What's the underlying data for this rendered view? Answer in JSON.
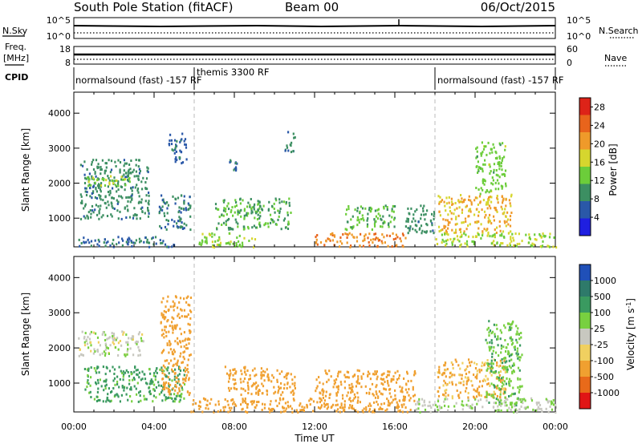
{
  "header": {
    "station": "South Pole Station (fitACF)",
    "beam": "Beam 00",
    "date": "06/Oct/2015"
  },
  "strips": {
    "nsky_label": "N.Sky",
    "nsearch_label": "N.Search",
    "freq_label": "Freq.",
    "freq_unit": "[MHz]",
    "nave_label": "Nave",
    "cpid_label": "CPID",
    "sky_ticks": [
      "10^5",
      "10^0"
    ],
    "search_ticks": [
      "10^5",
      "10^0"
    ],
    "freq_ticks": [
      "18",
      "8"
    ],
    "nave_ticks": [
      "60",
      "0"
    ],
    "freq_value_mhz": 12,
    "nave_value": 30,
    "cpid_segments": [
      {
        "label": "normalsound (fast) -157 RF",
        "start_h": 0,
        "end_h": 6
      },
      {
        "label": "themis 3300 RF",
        "start_h": 6,
        "end_h": 18
      },
      {
        "label": "normalsound (fast) -157 RF",
        "start_h": 18,
        "end_h": 24
      }
    ]
  },
  "xaxis": {
    "label": "Time UT",
    "ticks": [
      "00:00",
      "04:00",
      "08:00",
      "12:00",
      "16:00",
      "20:00",
      "00:00"
    ]
  },
  "colors": {
    "power": [
      "#1f1fe0",
      "#2a58a8",
      "#3c8f62",
      "#6ccd3a",
      "#d6d62e",
      "#ef9a2a",
      "#e8641c",
      "#dd2318"
    ],
    "velocity": [
      "#e01515",
      "#e86a1a",
      "#f0a030",
      "#f0d060",
      "#c8c8c0",
      "#78d040",
      "#3a9a60",
      "#2e7a6a",
      "#2050b8"
    ]
  },
  "chart_data": [
    {
      "type": "heatmap",
      "title": "",
      "xlabel": "Time UT",
      "ylabel": "Slant Range [km]",
      "xlim": [
        0,
        24
      ],
      "ylim": [
        180,
        4600
      ],
      "x_ticks": [
        "00:00",
        "04:00",
        "08:00",
        "12:00",
        "16:00",
        "20:00",
        "00:00"
      ],
      "y_ticks": [
        1000,
        2000,
        3000,
        4000
      ],
      "colorbar": {
        "label": "Power [dB]",
        "ticks": [
          4,
          8,
          12,
          16,
          20,
          24,
          28
        ],
        "range": [
          0,
          30
        ]
      },
      "patches": [
        {
          "t0": 0.3,
          "t1": 3.7,
          "r0": 1000,
          "r1": 2700,
          "value": 9
        },
        {
          "t0": 0.6,
          "t1": 2.8,
          "r0": 1950,
          "r1": 2250,
          "value": 14
        },
        {
          "t0": 0.2,
          "t1": 5.0,
          "r0": 200,
          "r1": 500,
          "value": 7
        },
        {
          "t0": 4.2,
          "t1": 5.8,
          "r0": 700,
          "r1": 1700,
          "value": 8
        },
        {
          "t0": 4.7,
          "t1": 5.6,
          "r0": 2600,
          "r1": 3500,
          "value": 6
        },
        {
          "t0": 6.2,
          "t1": 9.0,
          "r0": 200,
          "r1": 600,
          "value": 14
        },
        {
          "t0": 7.0,
          "t1": 10.8,
          "r0": 700,
          "r1": 1600,
          "value": 11
        },
        {
          "t0": 7.6,
          "t1": 8.1,
          "r0": 2350,
          "r1": 2700,
          "value": 7
        },
        {
          "t0": 10.5,
          "t1": 11.0,
          "r0": 2900,
          "r1": 3500,
          "value": 9
        },
        {
          "t0": 12.0,
          "t1": 16.5,
          "r0": 200,
          "r1": 600,
          "value": 22
        },
        {
          "t0": 13.5,
          "t1": 16.0,
          "r0": 700,
          "r1": 1400,
          "value": 12
        },
        {
          "t0": 16.5,
          "t1": 18.0,
          "r0": 600,
          "r1": 1400,
          "value": 9
        },
        {
          "t0": 18.1,
          "t1": 21.8,
          "r0": 600,
          "r1": 1700,
          "value": 19
        },
        {
          "t0": 20.0,
          "t1": 21.5,
          "r0": 1700,
          "r1": 3200,
          "value": 13
        },
        {
          "t0": 18.0,
          "t1": 24.0,
          "r0": 200,
          "r1": 600,
          "value": 15
        }
      ]
    },
    {
      "type": "heatmap",
      "title": "",
      "xlabel": "Time UT",
      "ylabel": "Slant Range [km]",
      "xlim": [
        0,
        24
      ],
      "ylim": [
        180,
        4600
      ],
      "x_ticks": [
        "00:00",
        "04:00",
        "08:00",
        "12:00",
        "16:00",
        "20:00",
        "00:00"
      ],
      "y_ticks": [
        1000,
        2000,
        3000,
        4000
      ],
      "colorbar": {
        "label": "Velocity [m s^-1]",
        "ticks": [
          "1000",
          "500",
          "100",
          "25",
          "-25",
          "-100",
          "-500",
          "-1000"
        ],
        "range": [
          -1000,
          1000
        ]
      },
      "patches": [
        {
          "t0": 0.2,
          "t1": 3.5,
          "r0": 1800,
          "r1": 2500,
          "value": 0
        },
        {
          "t0": 0.5,
          "t1": 5.5,
          "r0": 500,
          "r1": 1500,
          "value": 120
        },
        {
          "t0": 4.3,
          "t1": 5.8,
          "r0": 700,
          "r1": 3500,
          "value": -150
        },
        {
          "t0": 5.8,
          "t1": 12.0,
          "r0": 200,
          "r1": 600,
          "value": -300
        },
        {
          "t0": 7.5,
          "t1": 11.0,
          "r0": 700,
          "r1": 1500,
          "value": -200
        },
        {
          "t0": 12.0,
          "t1": 17.0,
          "r0": 200,
          "r1": 1400,
          "value": -200
        },
        {
          "t0": 17.0,
          "t1": 24.0,
          "r0": 200,
          "r1": 600,
          "value": 20
        },
        {
          "t0": 18.1,
          "t1": 21.5,
          "r0": 600,
          "r1": 1700,
          "value": -120
        },
        {
          "t0": 20.5,
          "t1": 22.3,
          "r0": 400,
          "r1": 2800,
          "value": 80
        }
      ]
    }
  ]
}
